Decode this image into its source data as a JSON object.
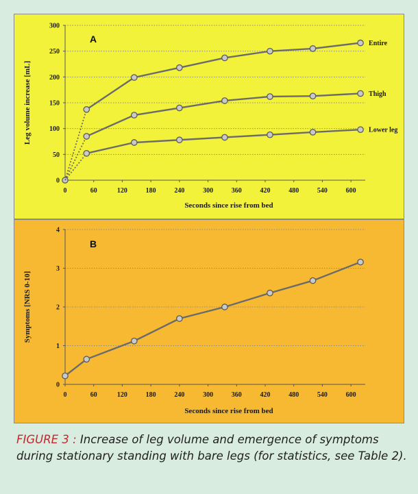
{
  "caption": {
    "lead": "FIGURE 3 :",
    "text": " Increase of leg volume and emergence of symptoms during stationary standing with bare legs (for statistics, see Table 2)."
  },
  "colors": {
    "background": "#d8ecdf",
    "panel_a": "#f2f23a",
    "panel_b": "#f6b931",
    "line": "#6b6b6b",
    "marker_fill": "#c9c9c9",
    "caption_lead": "#c9252c"
  },
  "chart_data": [
    {
      "type": "line",
      "panel_letter": "A",
      "xlabel": "Seconds since rise from bed",
      "ylabel": "Leg volume increase [mL]",
      "xlim": [
        0,
        630
      ],
      "ylim": [
        0,
        300
      ],
      "xticks": [
        0,
        60,
        120,
        180,
        240,
        300,
        360,
        420,
        480,
        540,
        600
      ],
      "yticks": [
        0,
        50,
        100,
        150,
        200,
        250,
        300
      ],
      "grid": "horizontal dotted",
      "series": [
        {
          "name": "Entire",
          "x": [
            0,
            45,
            145,
            240,
            335,
            430,
            520,
            620
          ],
          "y": [
            0,
            137,
            199,
            218,
            237,
            250,
            255,
            266
          ],
          "first_segment_dashed": true
        },
        {
          "name": "Thigh",
          "x": [
            0,
            45,
            145,
            240,
            335,
            430,
            520,
            620
          ],
          "y": [
            0,
            85,
            126,
            140,
            154,
            162,
            163,
            168
          ],
          "first_segment_dashed": true
        },
        {
          "name": "Lower leg",
          "x": [
            0,
            45,
            145,
            240,
            335,
            430,
            520,
            620
          ],
          "y": [
            0,
            52,
            73,
            78,
            83,
            88,
            93,
            98
          ],
          "first_segment_dashed": true
        }
      ]
    },
    {
      "type": "line",
      "panel_letter": "B",
      "xlabel": "Seconds since rise from bed",
      "ylabel": "Symptoms [NRS 0-10]",
      "xlim": [
        0,
        630
      ],
      "ylim": [
        0,
        4
      ],
      "xticks": [
        0,
        60,
        120,
        180,
        240,
        300,
        360,
        420,
        480,
        540,
        600
      ],
      "yticks": [
        0,
        1,
        2,
        3,
        4
      ],
      "grid": "horizontal dotted",
      "series": [
        {
          "name": "",
          "x": [
            0,
            45,
            145,
            240,
            335,
            430,
            520,
            620
          ],
          "y": [
            0.22,
            0.65,
            1.12,
            1.7,
            2.0,
            2.36,
            2.68,
            3.16
          ],
          "first_segment_dashed": false
        }
      ]
    }
  ]
}
